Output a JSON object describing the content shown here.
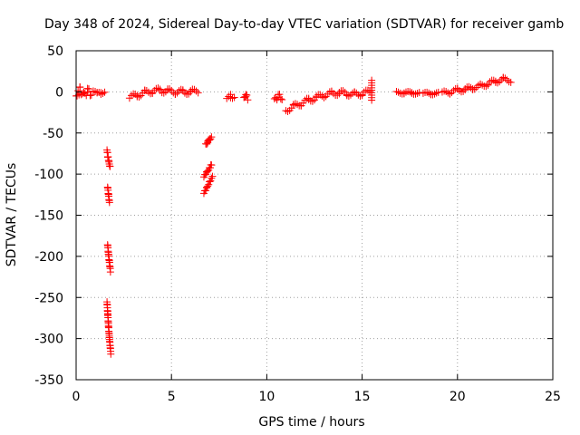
{
  "chart_data": {
    "type": "scatter",
    "title": "Day 348 of 2024, Sidereal Day-to-day VTEC variation (SDTVAR) for receiver gamb",
    "xlabel": "GPS time / hours",
    "ylabel": "SDTVAR / TECUs",
    "xlim": [
      0,
      25
    ],
    "ylim": [
      -350,
      50
    ],
    "xticks": [
      0,
      5,
      10,
      15,
      20,
      25
    ],
    "yticks": [
      50,
      0,
      -50,
      -100,
      -150,
      -200,
      -250,
      -300,
      -350
    ],
    "grid": true,
    "marker": "plus",
    "color": "#ff0000",
    "series": [
      {
        "name": "SDTVAR",
        "segments": [
          {
            "x": [
              0.0,
              0.2,
              0.4,
              0.6,
              0.8
            ],
            "y": [
              -5,
              2,
              -4,
              1,
              -3
            ],
            "spread": 8
          },
          {
            "x": [
              0.9,
              1.1,
              1.3,
              1.5
            ],
            "y": [
              0,
              -1,
              -2,
              -1
            ],
            "spread": 2
          },
          {
            "x": [
              1.62,
              1.66,
              1.72,
              1.78
            ],
            "y": [
              -70,
              -78,
              -85,
              -92
            ],
            "spread": 3
          },
          {
            "x": [
              1.65,
              1.7,
              1.75
            ],
            "y": [
              -115,
              -125,
              -135
            ],
            "spread": 2
          },
          {
            "x": [
              1.65,
              1.7,
              1.75,
              1.8
            ],
            "y": [
              -185,
              -198,
              -208,
              -218
            ],
            "spread": 2
          },
          {
            "x": [
              1.62,
              1.66,
              1.7,
              1.74,
              1.78,
              1.82
            ],
            "y": [
              -255,
              -270,
              -285,
              -298,
              -308,
              -318
            ],
            "spread": 2
          },
          {
            "x": [
              2.8,
              3.2,
              3.6,
              4.0,
              4.4,
              4.8,
              5.2,
              5.6,
              6.0,
              6.4
            ],
            "y": [
              -7,
              -4,
              -1,
              1,
              2,
              1,
              0,
              0,
              0,
              1
            ],
            "spread": 6
          },
          {
            "x": [
              6.8,
              6.9,
              7.0,
              7.1
            ],
            "y": [
              -64,
              -61,
              -58,
              -55
            ],
            "spread": 2
          },
          {
            "x": [
              6.7,
              6.85,
              7.0,
              7.1
            ],
            "y": [
              -103,
              -98,
              -93,
              -88
            ],
            "spread": 2
          },
          {
            "x": [
              6.7,
              6.85,
              7.0,
              7.15
            ],
            "y": [
              -123,
              -117,
              -110,
              -103
            ],
            "spread": 2
          },
          {
            "x": [
              7.9,
              8.1,
              8.3
            ],
            "y": [
              -6,
              -5,
              -6
            ],
            "spread": 5
          },
          {
            "x": [
              8.8,
              8.9,
              9.0
            ],
            "y": [
              -6,
              -5,
              -7
            ],
            "spread": 6
          },
          {
            "x": [
              10.4,
              10.6,
              10.8
            ],
            "y": [
              -10,
              -5,
              -8
            ],
            "spread": 6
          },
          {
            "x": [
              11.0,
              11.4,
              11.8,
              12.2,
              12.6,
              13.0,
              13.4,
              13.8,
              14.2,
              14.6,
              15.0,
              15.4
            ],
            "y": [
              -22,
              -18,
              -14,
              -10,
              -7,
              -4,
              -2,
              -1,
              -2,
              -3,
              -2,
              0
            ],
            "spread": 6
          },
          {
            "x": [
              15.5
            ],
            "y": [
              2
            ],
            "spread": 12
          },
          {
            "x": [
              16.8,
              17.2,
              17.6,
              18.0
            ],
            "y": [
              -1,
              -1,
              -1,
              -2
            ],
            "spread": 3
          },
          {
            "x": [
              18.2,
              18.6,
              19.0
            ],
            "y": [
              -2,
              -2,
              -2
            ],
            "spread": 3
          },
          {
            "x": [
              19.2,
              19.6,
              20.0,
              20.4,
              20.8,
              21.2,
              21.6,
              22.0,
              22.4,
              22.8
            ],
            "y": [
              -2,
              0,
              2,
              3,
              5,
              7,
              10,
              13,
              15,
              14
            ],
            "spread": 5
          }
        ]
      }
    ]
  }
}
